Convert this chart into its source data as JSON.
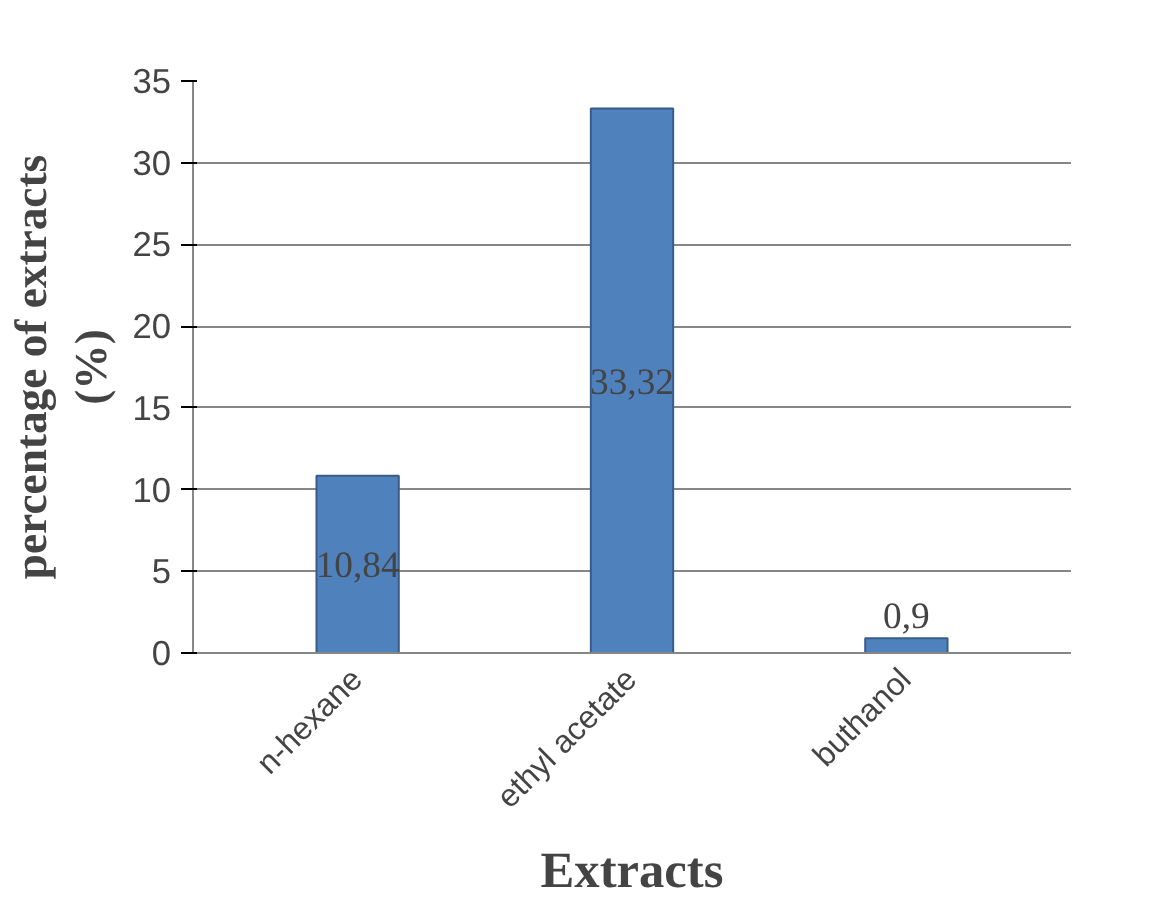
{
  "chart_data": {
    "type": "bar",
    "xlabel": "Extracts",
    "ylabel": "percentage of extracts (%)",
    "categories": [
      "n-hexane",
      "ethyl acetate",
      "buthanol"
    ],
    "values": [
      10.84,
      33.32,
      0.9
    ],
    "value_labels": [
      "10,84",
      "33,32",
      "0,9"
    ],
    "color": "#4f81bd",
    "ylim": [
      0,
      35
    ],
    "yticks": [
      0,
      5,
      10,
      15,
      20,
      25,
      30,
      35
    ],
    "grid": "y"
  }
}
